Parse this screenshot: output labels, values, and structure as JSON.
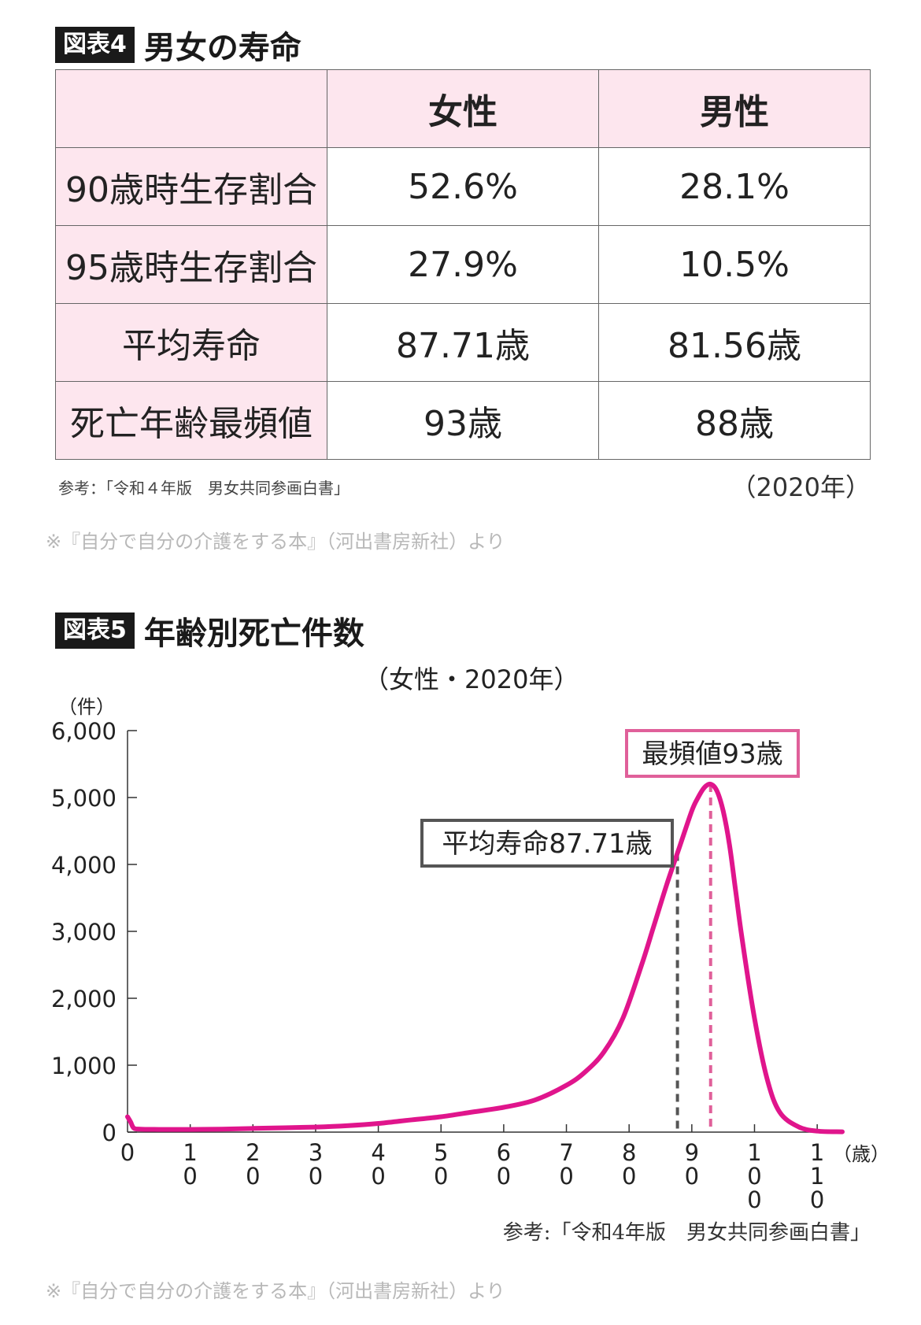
{
  "figure4": {
    "tag": "図表4",
    "title": "男女の寿命",
    "columns": [
      "",
      "女性",
      "男性"
    ],
    "rows": [
      {
        "label": "90歳時生存割合",
        "female": "52.6%",
        "male": "28.1%"
      },
      {
        "label": "95歳時生存割合",
        "female": "27.9%",
        "male": "10.5%"
      },
      {
        "label": "平均寿命",
        "female": "87.71歳",
        "male": "81.56歳"
      },
      {
        "label": "死亡年齢最頻値",
        "female": "93歳",
        "male": "88歳"
      }
    ],
    "source": "参考：「令和４年版　男女共同参画白書」",
    "year": "（2020年）",
    "credit": "※『自分で自分の介護をする本』（河出書房新社）より"
  },
  "figure5": {
    "tag": "図表5",
    "title": "年齢別死亡件数",
    "source": "参考:「令和4年版　男女共同参画白書」",
    "credit": "※『自分で自分の介護をする本』（河出書房新社）より"
  },
  "chart_data": {
    "type": "line",
    "subtitle": "（女性・2020年）",
    "ylabel": "（件）",
    "xlabel": "（歳）",
    "xlim": [
      0,
      114
    ],
    "ylim": [
      0,
      6000
    ],
    "yticks": [
      0,
      1000,
      2000,
      3000,
      4000,
      5000,
      6000
    ],
    "ytick_labels": [
      "0",
      "1,000",
      "2,000",
      "3,000",
      "4,000",
      "5,000",
      "6,000"
    ],
    "xticks": [
      0,
      10,
      20,
      30,
      40,
      50,
      60,
      70,
      80,
      90,
      100,
      110
    ],
    "xtick_labels": [
      "0",
      "10",
      "20",
      "30",
      "40",
      "50",
      "60",
      "70",
      "80",
      "90",
      "100",
      "110"
    ],
    "line_color": "#e0158c",
    "series": [
      {
        "x": [
          0,
          0.5,
          1,
          2,
          5,
          10,
          15,
          20,
          25,
          30,
          35,
          40,
          45,
          50,
          55,
          60,
          65,
          70,
          73,
          76,
          79,
          82,
          84,
          86,
          88,
          90,
          91,
          92,
          93,
          94,
          95,
          96,
          97,
          98,
          100,
          102,
          104,
          107,
          110,
          114
        ],
        "y": [
          230,
          150,
          60,
          45,
          40,
          40,
          45,
          55,
          65,
          75,
          95,
          130,
          180,
          230,
          300,
          370,
          480,
          700,
          900,
          1200,
          1700,
          2500,
          3100,
          3700,
          4250,
          4800,
          5000,
          5150,
          5200,
          5100,
          4800,
          4300,
          3600,
          2900,
          1700,
          800,
          300,
          80,
          15,
          5
        ]
      }
    ],
    "annotations": [
      {
        "label": "平均寿命87.71歳",
        "x": 87.71,
        "color": "#555555"
      },
      {
        "label": "最頻値93歳",
        "x": 93,
        "color": "#e0609a"
      }
    ]
  }
}
